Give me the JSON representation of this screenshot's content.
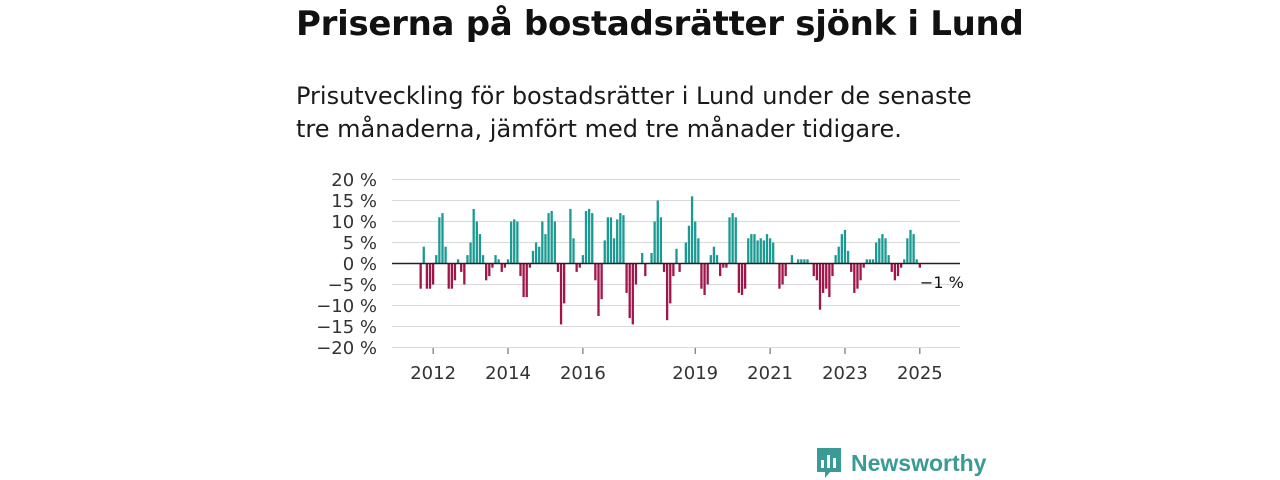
{
  "header": {
    "title": "Priserna på bostadsrätter sjönk i Lund",
    "subtitle": "Prisutveckling för bostadsrätter i Lund under de senaste tre månaderna, jämfört med tre månader tidigare."
  },
  "brand": {
    "name": "Newsworthy"
  },
  "colors": {
    "positive": "#1a9a93",
    "negative": "#a0154a",
    "grid": "#d9d9d9",
    "zero_line": "#222222",
    "brand": "#3a9a96"
  },
  "chart_data": {
    "type": "bar",
    "title": "Priserna på bostadsrätter sjönk i Lund",
    "xlabel": "",
    "ylabel": "",
    "ylim": [
      -20,
      20
    ],
    "grid": true,
    "y_ticks": [
      20,
      15,
      10,
      5,
      0,
      -5,
      -10,
      -15,
      -20
    ],
    "y_tick_labels": [
      "20 %",
      "15 %",
      "10 %",
      "5 %",
      "0 %",
      "−5 %",
      "−10 %",
      "−15 %",
      "−20 %"
    ],
    "x_tick_labels": [
      "2012",
      "2014",
      "2016",
      "2019",
      "2021",
      "2023",
      "2025"
    ],
    "x_tick_month_index": [
      4,
      28,
      52,
      88,
      112,
      136,
      160
    ],
    "start": "2011-08",
    "series": [
      {
        "name": "Prisutveckling",
        "values": [
          -6,
          4,
          -6,
          -6,
          -5,
          2,
          11,
          12,
          4,
          -6,
          -6,
          -4,
          1,
          -2,
          -5,
          2,
          5,
          13,
          10,
          7,
          2,
          -4,
          -3,
          -1,
          2,
          1,
          -2,
          -1,
          1,
          10,
          10.5,
          10,
          -3,
          -8,
          -8,
          -1,
          3,
          5,
          4,
          10,
          7,
          12,
          12.5,
          10,
          -2,
          -14.5,
          -9.5,
          0,
          13,
          6,
          -2,
          -1,
          2,
          12.5,
          13,
          12,
          -4,
          -12.5,
          -8.5,
          5.5,
          11,
          11,
          6,
          10.5,
          12,
          11.5,
          -7,
          -13,
          -14.5,
          -5,
          0,
          2.5,
          -3,
          0,
          2.5,
          10,
          15,
          11,
          -2,
          -13.5,
          -9.5,
          -3,
          3.5,
          -2,
          0,
          5,
          9,
          16,
          10,
          6,
          -6,
          -7.5,
          -5,
          2,
          4,
          2,
          -3,
          -1,
          -1,
          11,
          12,
          11,
          -7,
          -7.5,
          -6,
          6,
          7,
          7,
          5.5,
          6,
          5.5,
          7,
          6,
          5,
          0,
          -6,
          -5,
          -3,
          0,
          2,
          0,
          1,
          1,
          1,
          1,
          0,
          -3,
          -4,
          -11,
          -7,
          -6,
          -8,
          -3,
          2,
          4,
          7,
          8,
          3,
          -2,
          -7,
          -6,
          -4,
          -1,
          1,
          1,
          1,
          5,
          6,
          7,
          6,
          2,
          -2,
          -4,
          -3,
          -1,
          1,
          6,
          8,
          7,
          1,
          -1
        ]
      }
    ],
    "annotations": [
      {
        "text": "−1 %",
        "target": "last_value"
      }
    ]
  }
}
